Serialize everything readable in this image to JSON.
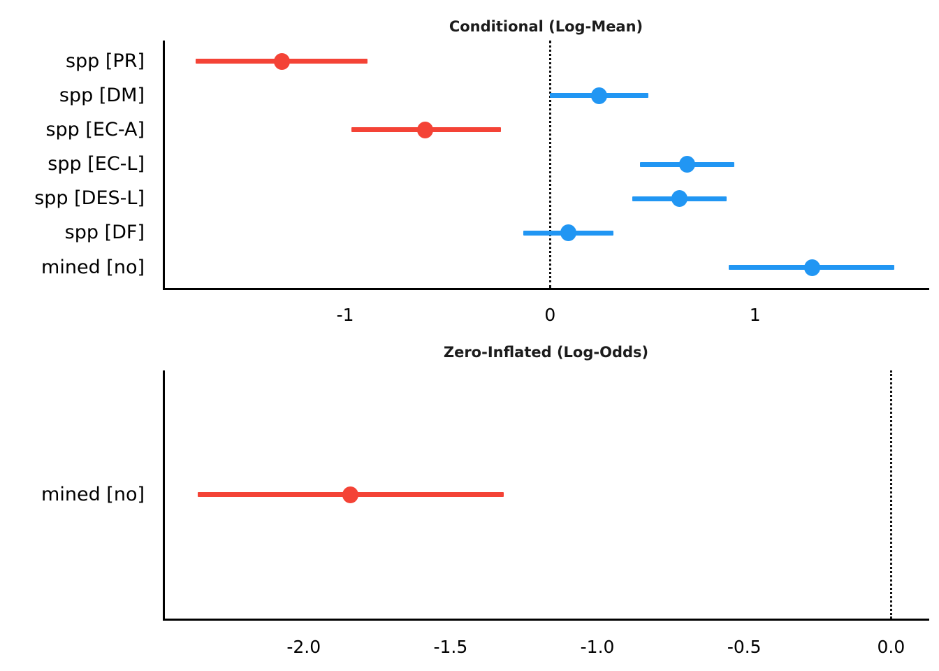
{
  "figure": {
    "background": "#ffffff",
    "text_color": "#000000",
    "axis_color": "#000000"
  },
  "colors": {
    "negative_estimate": "#f44336",
    "positive_estimate": "#2196f3",
    "reference_line": "#111111"
  },
  "chart_data": [
    {
      "type": "scatter",
      "subtype": "forest-pointrange",
      "title": "Conditional (Log-Mean)",
      "xlim": [
        -1.89,
        1.85
      ],
      "grid": false,
      "reference_line": 0,
      "reference_line_style": "dotted",
      "x_ticks": [
        {
          "value": -1,
          "label": "-1"
        },
        {
          "value": 0,
          "label": "0"
        },
        {
          "value": 1,
          "label": "1"
        }
      ],
      "categories": [
        "spp [PR]",
        "spp [DM]",
        "spp [EC-A]",
        "spp [EC-L]",
        "spp [DES-L]",
        "spp [DF]",
        "mined [no]"
      ],
      "points": [
        {
          "label": "spp [PR]",
          "estimate": -1.31,
          "ci_low": -1.73,
          "ci_high": -0.89,
          "color": "#f44336"
        },
        {
          "label": "spp [DM]",
          "estimate": 0.24,
          "ci_low": 0.0,
          "ci_high": 0.48,
          "color": "#2196f3"
        },
        {
          "label": "spp [EC-A]",
          "estimate": -0.61,
          "ci_low": -0.97,
          "ci_high": -0.24,
          "color": "#f44336"
        },
        {
          "label": "spp [EC-L]",
          "estimate": 0.67,
          "ci_low": 0.44,
          "ci_high": 0.9,
          "color": "#2196f3"
        },
        {
          "label": "spp [DES-L]",
          "estimate": 0.63,
          "ci_low": 0.4,
          "ci_high": 0.86,
          "color": "#2196f3"
        },
        {
          "label": "spp [DF]",
          "estimate": 0.09,
          "ci_low": -0.13,
          "ci_high": 0.31,
          "color": "#2196f3"
        },
        {
          "label": "mined [no]",
          "estimate": 1.28,
          "ci_low": 0.87,
          "ci_high": 1.68,
          "color": "#2196f3"
        }
      ]
    },
    {
      "type": "scatter",
      "subtype": "forest-pointrange",
      "title": "Zero-Inflated (Log-Odds)",
      "xlim": [
        -2.48,
        0.13
      ],
      "grid": false,
      "reference_line": 0,
      "reference_line_style": "dotted",
      "x_ticks": [
        {
          "value": -2.0,
          "label": "-2.0"
        },
        {
          "value": -1.5,
          "label": "-1.5"
        },
        {
          "value": -1.0,
          "label": "-1.0"
        },
        {
          "value": -0.5,
          "label": "-0.5"
        },
        {
          "value": 0.0,
          "label": "0.0"
        }
      ],
      "categories": [
        "mined [no]"
      ],
      "points": [
        {
          "label": "mined [no]",
          "estimate": -1.84,
          "ci_low": -2.36,
          "ci_high": -1.32,
          "color": "#f44336"
        }
      ]
    }
  ]
}
